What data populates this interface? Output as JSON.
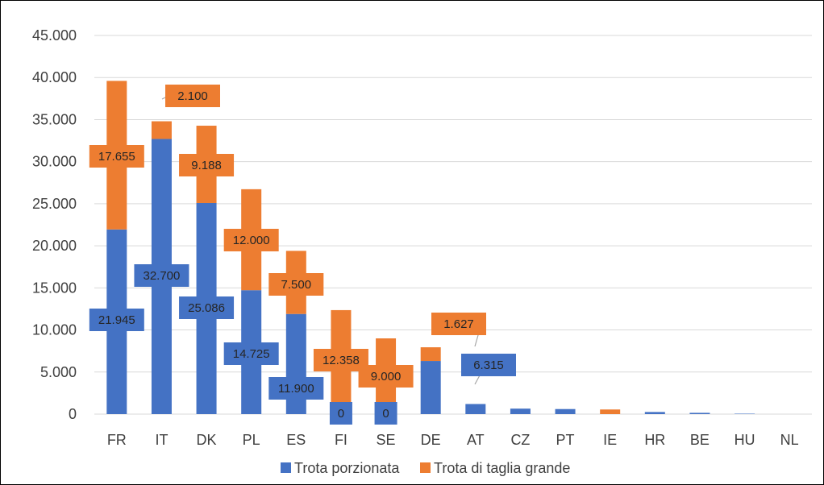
{
  "chart_data": {
    "type": "bar",
    "stacked": true,
    "categories": [
      "FR",
      "IT",
      "DK",
      "PL",
      "ES",
      "FI",
      "SE",
      "DE",
      "AT",
      "CZ",
      "PT",
      "IE",
      "HR",
      "BE",
      "HU",
      "NL"
    ],
    "series": [
      {
        "name": "Trota porzionata",
        "color": "#4472C4",
        "values": [
          21945,
          32700,
          25086,
          14725,
          11900,
          0,
          0,
          6315,
          1200,
          650,
          600,
          0,
          250,
          150,
          50,
          0
        ],
        "labels": [
          "21.945",
          "32.700",
          "25.086",
          "14.725",
          "11.900",
          "0",
          "0",
          "6.315",
          null,
          null,
          null,
          null,
          null,
          null,
          null,
          null
        ]
      },
      {
        "name": "Trota di taglia grande",
        "color": "#ED7D31",
        "values": [
          17655,
          2100,
          9188,
          12000,
          7500,
          12358,
          9000,
          1627,
          0,
          0,
          0,
          550,
          0,
          0,
          0,
          0
        ],
        "labels": [
          "17.655",
          "2.100",
          "9.188",
          "12.000",
          "7.500",
          "12.358",
          "9.000",
          "1.627",
          null,
          null,
          null,
          null,
          null,
          null,
          null,
          null
        ]
      }
    ],
    "y_ticks": [
      "0",
      "5.000",
      "10.000",
      "15.000",
      "20.000",
      "25.000",
      "30.000",
      "35.000",
      "40.000",
      "45.000"
    ],
    "ylim": [
      0,
      45000
    ],
    "grid": true,
    "legend_position": "bottom"
  }
}
